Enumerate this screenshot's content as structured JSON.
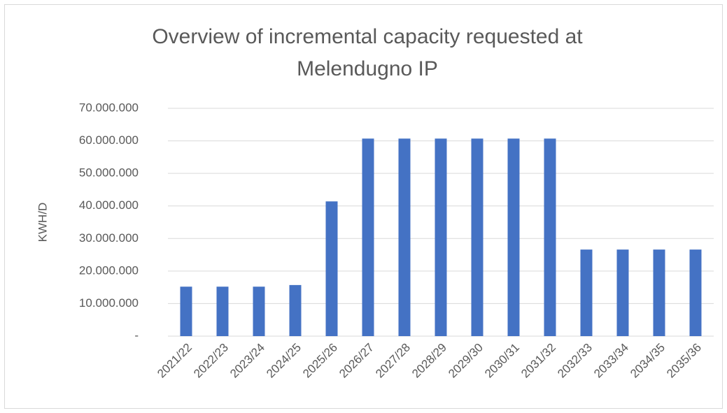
{
  "chart_data": {
    "type": "bar",
    "title": "Overview of incremental capacity requested at Melendugno IP",
    "y_label": "KWH/D",
    "categories": [
      "2021/22",
      "2022/23",
      "2023/24",
      "2024/25",
      "2025/26",
      "2026/27",
      "2027/28",
      "2028/29",
      "2029/30",
      "2030/31",
      "2031/32",
      "2032/33",
      "2033/34",
      "2034/35",
      "2035/36"
    ],
    "values": [
      15200000,
      15200000,
      15200000,
      15700000,
      41400000,
      60700000,
      60700000,
      60700000,
      60700000,
      60700000,
      60700000,
      26600000,
      26600000,
      26600000,
      26600000
    ],
    "color": "#4472c4",
    "ylim": [
      0,
      70000000
    ],
    "yticks": [
      {
        "value": 0,
        "label": "-"
      },
      {
        "value": 10000000,
        "label": "10.000.000"
      },
      {
        "value": 20000000,
        "label": "20.000.000"
      },
      {
        "value": 30000000,
        "label": "30.000.000"
      },
      {
        "value": 40000000,
        "label": "40.000.000"
      },
      {
        "value": 50000000,
        "label": "50.000.000"
      },
      {
        "value": 60000000,
        "label": "60.000.000"
      },
      {
        "value": 70000000,
        "label": "70.000.000"
      }
    ],
    "grid": true
  }
}
